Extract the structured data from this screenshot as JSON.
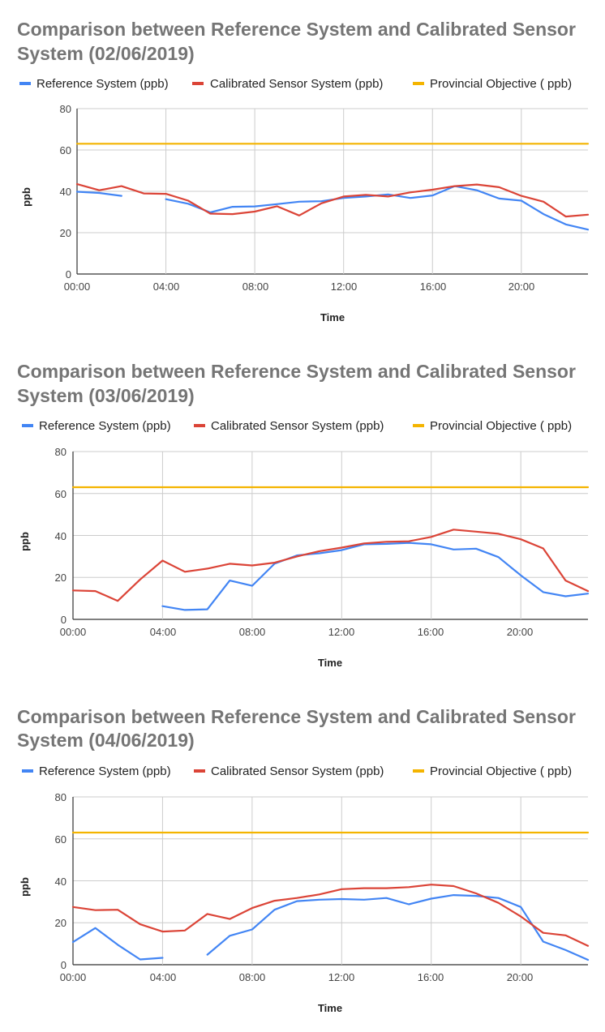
{
  "chart_data": [
    {
      "type": "line",
      "title": "Comparison  between Reference System and Calibrated  Sensor System (02/06/2019)",
      "title_lines": [
        "Comparison  between Reference System and Calibrated  Sensor",
        "System (02/06/2019)"
      ],
      "xlabel": "Time",
      "ylabel": "ppb",
      "xlim": [
        0,
        23
      ],
      "ylim": [
        0,
        80
      ],
      "x_ticks": [
        "00:00",
        "04:00",
        "08:00",
        "12:00",
        "16:00",
        "20:00"
      ],
      "y_ticks": [
        "0",
        "20",
        "40",
        "60",
        "80"
      ],
      "grid": true,
      "legend_position": "top",
      "x": [
        0,
        1,
        2,
        3,
        4,
        5,
        6,
        7,
        8,
        9,
        10,
        11,
        12,
        13,
        14,
        15,
        16,
        17,
        18,
        19,
        20,
        21,
        22,
        23
      ],
      "series": [
        {
          "name": "Reference System (ppb)",
          "color": "#4285f4",
          "values": [
            39.8,
            39.2,
            37.8,
            null,
            36.2,
            34.0,
            29.8,
            32.5,
            32.7,
            33.8,
            35.0,
            35.2,
            36.8,
            37.5,
            38.5,
            36.8,
            38.0,
            42.5,
            40.5,
            36.5,
            35.5,
            29.0,
            24.0,
            21.5
          ]
        },
        {
          "name": "Calibrated Sensor  System (ppb)",
          "color": "#db4437",
          "values": [
            43.5,
            40.5,
            42.5,
            39.0,
            38.8,
            35.5,
            29.2,
            29.0,
            30.2,
            32.8,
            28.3,
            34.2,
            37.5,
            38.3,
            37.5,
            39.5,
            40.8,
            42.5,
            43.3,
            42.0,
            37.8,
            35.0,
            27.8,
            28.7
          ]
        },
        {
          "name": "Provincial Objective ( ppb)",
          "color": "#f4b400",
          "values": [
            63,
            63,
            63,
            63,
            63,
            63,
            63,
            63,
            63,
            63,
            63,
            63,
            63,
            63,
            63,
            63,
            63,
            63,
            63,
            63,
            63,
            63,
            63,
            63
          ]
        }
      ]
    },
    {
      "type": "line",
      "title": "Comparison  between Reference System and Calibrated  Sensor System (03/06/2019)",
      "title_lines": [
        "Comparison  between Reference System and Calibrated  Sensor",
        "System (03/06/2019)"
      ],
      "xlabel": "Time",
      "ylabel": "ppb",
      "xlim": [
        0,
        23
      ],
      "ylim": [
        0,
        80
      ],
      "x_ticks": [
        "00:00",
        "04:00",
        "08:00",
        "12:00",
        "16:00",
        "20:00"
      ],
      "y_ticks": [
        "0",
        "20",
        "40",
        "60",
        "80"
      ],
      "grid": true,
      "legend_position": "top",
      "x": [
        0,
        1,
        2,
        3,
        4,
        5,
        6,
        7,
        8,
        9,
        10,
        11,
        12,
        13,
        14,
        15,
        16,
        17,
        18,
        19,
        20,
        21,
        22,
        23
      ],
      "series": [
        {
          "name": "Reference System (ppb)",
          "color": "#4285f4",
          "values": [
            null,
            null,
            null,
            null,
            6.3,
            4.5,
            4.8,
            18.5,
            16.0,
            26.5,
            30.5,
            31.5,
            33.0,
            35.8,
            36.0,
            36.5,
            35.8,
            33.3,
            33.7,
            29.7,
            21.0,
            13.0,
            11.0,
            12.3
          ]
        },
        {
          "name": "Calibrated Sensor  System (ppb)",
          "color": "#db4437",
          "values": [
            13.8,
            13.5,
            8.8,
            19.0,
            28.0,
            22.7,
            24.2,
            26.5,
            25.7,
            27.0,
            30.0,
            32.5,
            34.2,
            36.2,
            37.0,
            37.2,
            39.3,
            42.8,
            41.8,
            40.8,
            38.2,
            33.8,
            18.5,
            13.5
          ]
        },
        {
          "name": "Provincial Objective ( ppb)",
          "color": "#f4b400",
          "values": [
            63,
            63,
            63,
            63,
            63,
            63,
            63,
            63,
            63,
            63,
            63,
            63,
            63,
            63,
            63,
            63,
            63,
            63,
            63,
            63,
            63,
            63,
            63,
            63
          ]
        }
      ]
    },
    {
      "type": "line",
      "title": "Comparison between Reference System and Calibrated Sensor System (04/06/2019)",
      "title_lines": [
        "Comparison between Reference System and Calibrated Sensor",
        "System (04/06/2019)"
      ],
      "xlabel": "Time",
      "ylabel": "ppb",
      "xlim": [
        0,
        23
      ],
      "ylim": [
        0,
        80
      ],
      "x_ticks": [
        "00:00",
        "04:00",
        "08:00",
        "12:00",
        "16:00",
        "20:00"
      ],
      "y_ticks": [
        "0",
        "20",
        "40",
        "60",
        "80"
      ],
      "grid": true,
      "legend_position": "top",
      "x": [
        0,
        1,
        2,
        3,
        4,
        5,
        6,
        7,
        8,
        9,
        10,
        11,
        12,
        13,
        14,
        15,
        16,
        17,
        18,
        19,
        20,
        21,
        22,
        23
      ],
      "series": [
        {
          "name": "Reference System (ppb)",
          "color": "#4285f4",
          "values": [
            10.8,
            17.5,
            9.5,
            2.5,
            3.3,
            null,
            4.8,
            13.8,
            16.8,
            26.2,
            30.3,
            31.0,
            31.3,
            31.0,
            31.8,
            28.8,
            31.5,
            33.2,
            32.8,
            31.8,
            27.5,
            11.0,
            7.0,
            2.3
          ]
        },
        {
          "name": "Calibrated Sensor  System (ppb)",
          "color": "#db4437",
          "values": [
            27.5,
            26.0,
            26.2,
            19.3,
            15.8,
            16.3,
            24.2,
            21.8,
            27.0,
            30.5,
            31.8,
            33.5,
            36.0,
            36.5,
            36.5,
            37.0,
            38.2,
            37.5,
            34.0,
            29.5,
            23.0,
            15.2,
            14.0,
            9.0
          ]
        },
        {
          "name": "Provincial Objective ( ppb)",
          "color": "#f4b400",
          "values": [
            63,
            63,
            63,
            63,
            63,
            63,
            63,
            63,
            63,
            63,
            63,
            63,
            63,
            63,
            63,
            63,
            63,
            63,
            63,
            63,
            63,
            63,
            63,
            63
          ]
        }
      ]
    }
  ]
}
